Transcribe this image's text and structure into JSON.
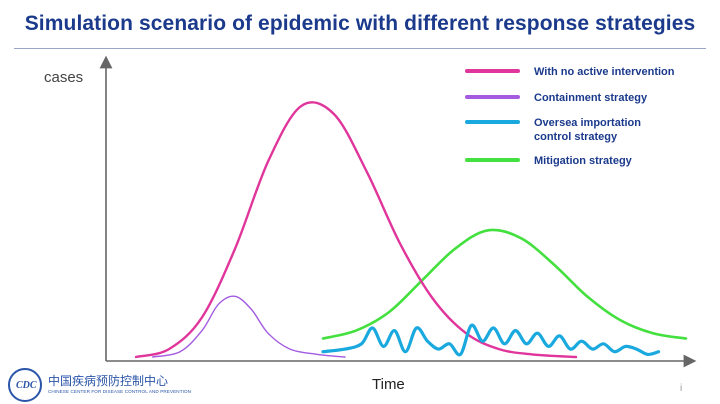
{
  "slide": {
    "title": "Simulation scenario of epidemic with different response strategies",
    "page_number": "i"
  },
  "logo": {
    "mark_text": "CDC",
    "name_cn": "中国疾病预防控制中心",
    "name_en": "CHINESE CENTER FOR DISEASE CONTROL AND PREVENTION"
  },
  "chart_data": {
    "type": "line",
    "title": "Simulation scenario of epidemic with different response strategies",
    "xlabel": "Time",
    "ylabel": "cases",
    "xlim": [
      0,
      100
    ],
    "ylim": [
      0,
      100
    ],
    "grid": false,
    "legend_position": "top-right",
    "series": [
      {
        "name": "With no active intervention",
        "color": "#e0359b",
        "x": [
          0,
          6,
          12,
          18,
          24,
          30,
          36,
          42,
          48,
          54,
          60,
          66,
          72,
          80
        ],
        "y": [
          0,
          3,
          15,
          41,
          74,
          95,
          92,
          70,
          43,
          22,
          9,
          3,
          1,
          0
        ]
      },
      {
        "name": "Containment strategy",
        "color": "#a35be0",
        "x": [
          3,
          8,
          12,
          15,
          18,
          21,
          24,
          28,
          33,
          38
        ],
        "y": [
          0,
          2,
          10,
          20,
          23,
          18,
          9,
          3,
          1,
          0
        ]
      },
      {
        "name": "Oversea importation control  strategy",
        "color": "#1aa9de",
        "x": [
          34,
          38,
          41,
          43,
          45,
          47,
          49,
          51,
          53,
          55,
          57,
          59,
          61,
          63,
          65,
          67,
          69,
          71,
          73,
          75,
          77,
          79,
          81,
          83,
          85,
          87,
          89,
          91,
          93,
          95
        ],
        "y": [
          2,
          3,
          5,
          11,
          4,
          10,
          2,
          11,
          6,
          3,
          5,
          1,
          12,
          6,
          11,
          5,
          10,
          5,
          9,
          4,
          8,
          3,
          6,
          3,
          5,
          2,
          4,
          3,
          1,
          2
        ]
      },
      {
        "name": "Mitigation strategy",
        "color": "#44e03f",
        "x": [
          34,
          40,
          46,
          52,
          58,
          64,
          70,
          76,
          82,
          88,
          94,
          100
        ],
        "y": [
          7,
          10,
          17,
          29,
          41,
          48,
          45,
          35,
          23,
          14,
          9,
          7
        ]
      }
    ]
  }
}
